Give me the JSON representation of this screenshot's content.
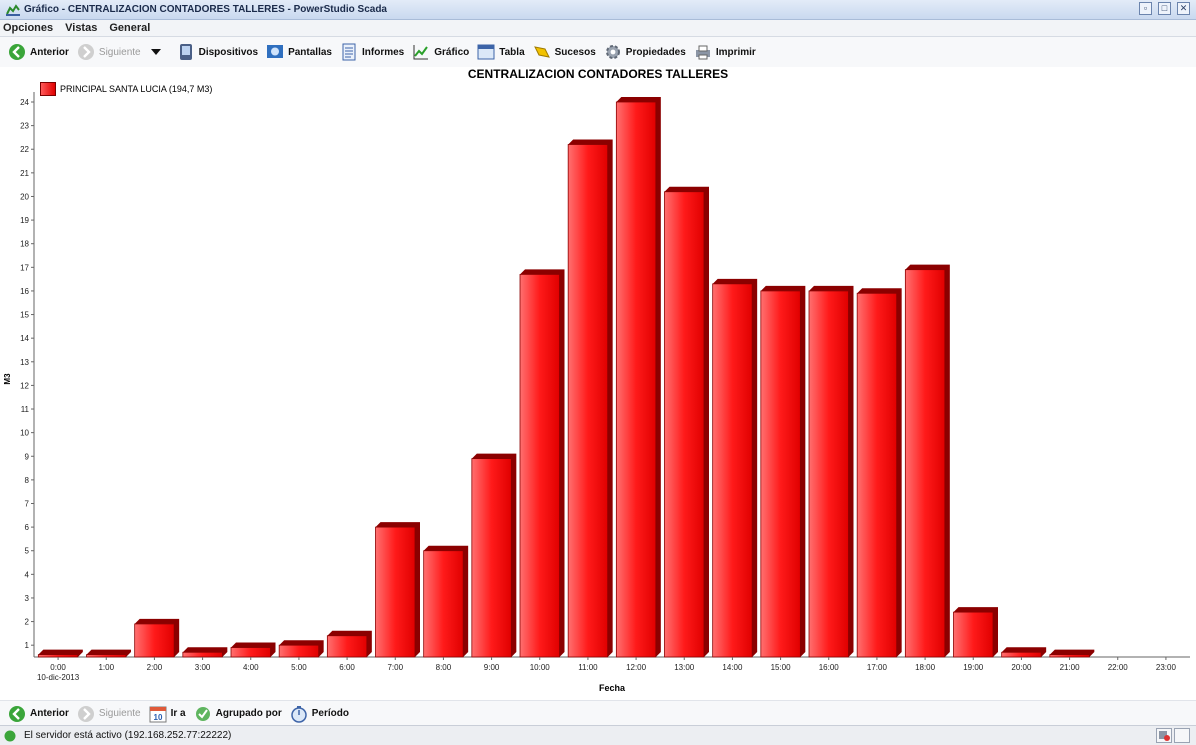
{
  "window": {
    "title": "Gráfico - CENTRALIZACION CONTADORES TALLERES - PowerStudio Scada",
    "controls": [
      "minimize-icon",
      "maximize-icon",
      "close-icon"
    ]
  },
  "menu": [
    "Opciones",
    "Vistas",
    "General"
  ],
  "toolbar": {
    "anterior": "Anterior",
    "siguiente": "Siguiente",
    "dispositivos": "Dispositivos",
    "pantallas": "Pantallas",
    "informes": "Informes",
    "grafico": "Gráfico",
    "tabla": "Tabla",
    "sucesos": "Sucesos",
    "propiedades": "Propiedades",
    "imprimir": "Imprimir"
  },
  "bottom_toolbar": {
    "anterior": "Anterior",
    "siguiente": "Siguiente",
    "ir_a": "Ir a",
    "agrupado_por": "Agrupado por",
    "periodo": "Período",
    "calendar_day": "10"
  },
  "status": {
    "text": "El servidor está activo (192.168.252.77:22222)"
  },
  "colors": {
    "bar": "#ff1a1a",
    "bar_dark": "#8b0000",
    "bar_light": "#ff7070"
  },
  "chart_data": {
    "type": "bar",
    "title": "CENTRALIZACION CONTADORES TALLERES",
    "legend": "PRINCIPAL SANTA LUCIA (194,7 M3)",
    "legend_position": "top-left",
    "ylabel": "M3",
    "xlabel": "Fecha",
    "date_label": "10-dic-2013",
    "ylim": [
      0.5,
      24
    ],
    "yticks": [
      1,
      2,
      3,
      4,
      5,
      6,
      7,
      8,
      9,
      10,
      11,
      12,
      13,
      14,
      15,
      16,
      17,
      18,
      19,
      20,
      21,
      22,
      23,
      24
    ],
    "grid": false,
    "categories": [
      "0:00",
      "1:00",
      "2:00",
      "3:00",
      "4:00",
      "5:00",
      "6:00",
      "7:00",
      "8:00",
      "9:00",
      "10:00",
      "11:00",
      "12:00",
      "13:00",
      "14:00",
      "15:00",
      "16:00",
      "17:00",
      "18:00",
      "19:00",
      "20:00",
      "21:00",
      "22:00",
      "23:00"
    ],
    "values": [
      0.6,
      0.6,
      1.9,
      0.7,
      0.9,
      1.0,
      1.4,
      6.0,
      5.0,
      8.9,
      16.7,
      22.2,
      24.0,
      20.2,
      16.3,
      16.0,
      16.0,
      15.9,
      16.9,
      2.4,
      0.7,
      0.6,
      null,
      null
    ]
  }
}
